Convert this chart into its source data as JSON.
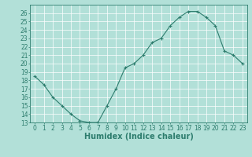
{
  "x": [
    0,
    1,
    2,
    3,
    4,
    5,
    6,
    7,
    8,
    9,
    10,
    11,
    12,
    13,
    14,
    15,
    16,
    17,
    18,
    19,
    20,
    21,
    22,
    23
  ],
  "y": [
    18.5,
    17.5,
    16.0,
    15.0,
    14.0,
    13.2,
    13.0,
    13.0,
    15.0,
    17.0,
    19.5,
    20.0,
    21.0,
    22.5,
    23.0,
    24.5,
    25.5,
    26.2,
    26.2,
    25.5,
    24.5,
    21.5,
    21.0,
    20.0
  ],
  "xlabel": "Humidex (Indice chaleur)",
  "xlim": [
    -0.5,
    23.5
  ],
  "ylim": [
    13,
    27
  ],
  "yticks": [
    13,
    14,
    15,
    16,
    17,
    18,
    19,
    20,
    21,
    22,
    23,
    24,
    25,
    26
  ],
  "xticks": [
    0,
    1,
    2,
    3,
    4,
    5,
    6,
    7,
    8,
    9,
    10,
    11,
    12,
    13,
    14,
    15,
    16,
    17,
    18,
    19,
    20,
    21,
    22,
    23
  ],
  "line_color": "#2e7d6e",
  "marker_color": "#2e7d6e",
  "bg_color": "#b2e0d8",
  "grid_color": "#ffffff",
  "label_color": "#2e7d6e",
  "tick_label_fontsize": 5.5,
  "xlabel_fontsize": 7.0
}
